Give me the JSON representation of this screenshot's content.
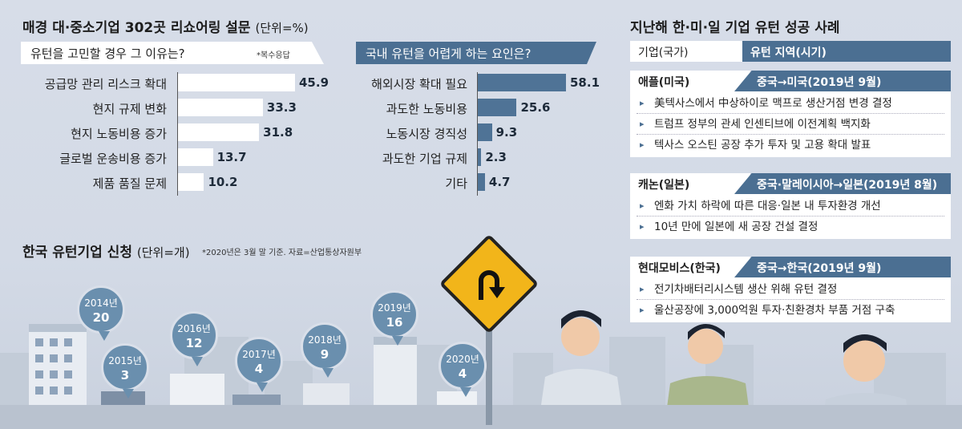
{
  "header": {
    "title": "매경 대·중소기업 302곳 리쇼어링 설문",
    "unit": "(단위=%)"
  },
  "left_chart": {
    "question": "유턴을 고민할 경우 그 이유는?",
    "note": "*복수응답"
  },
  "mid_chart": {
    "question": "국내 유턴을 어렵게 하는 요인은?"
  },
  "bottom": {
    "title": "한국 유턴기업 신청",
    "unit": "(단위=개)",
    "note": "*2020년은 3월 말 기준. 자료=산업통상자원부"
  },
  "chart_data": [
    {
      "type": "bar",
      "title": "유턴을 고민할 경우 그 이유는?",
      "orientation": "horizontal",
      "categories": [
        "공급망 관리 리스크 확대",
        "현지 규제 변화",
        "현지 노동비용 증가",
        "글로벌 운송비용 증가",
        "제품 품질 문제"
      ],
      "values": [
        45.9,
        33.3,
        31.8,
        13.7,
        10.2
      ],
      "value_labels": [
        "45.9",
        "33.3",
        "31.8",
        "13.7",
        "10.2"
      ],
      "color": "#ffffff"
    },
    {
      "type": "bar",
      "title": "국내 유턴을 어렵게 하는 요인은?",
      "orientation": "horizontal",
      "categories": [
        "해외시장 확대 필요",
        "과도한 노동비용",
        "노동시장 경직성",
        "과도한 기업 규제",
        "기타"
      ],
      "values": [
        58.1,
        25.6,
        9.3,
        2.3,
        4.7
      ],
      "value_labels": [
        "58.1",
        "25.6",
        "9.3",
        "2.3",
        "4.7"
      ],
      "color": "#4f7396"
    },
    {
      "type": "bar",
      "title": "한국 유턴기업 신청",
      "categories": [
        "2014년",
        "2015년",
        "2016년",
        "2017년",
        "2018년",
        "2019년",
        "2020년"
      ],
      "values": [
        20,
        3,
        12,
        4,
        9,
        16,
        4
      ],
      "value_labels": [
        "20",
        "3",
        "12",
        "4",
        "9",
        "16",
        "4"
      ]
    }
  ],
  "right_panel": {
    "title": "지난해 한·미·일 기업 유턴 성공 사례",
    "head_left": "기업(국가)",
    "head_right": "유턴 지역(시기)",
    "cases": [
      {
        "company": "애플(미국)",
        "route": "중국→미국(2019년 9월)",
        "items": [
          "美텍사스에서 中상하이로 맥프로 생산거점 변경 결정",
          "트럼프 정부의 관세 인센티브에 이전계획 백지화",
          "텍사스 오스틴 공장 추가 투자 및 고용 확대 발표"
        ]
      },
      {
        "company": "캐논(일본)",
        "route": "중국·말레이시아→일본(2019년 8월)",
        "items": [
          "엔화 가치 하락에 따른 대응·일본 내 투자환경 개선",
          "10년 만에 일본에 새 공장 건설 결정"
        ]
      },
      {
        "company": "현대모비스(한국)",
        "route": "중국→한국(2019년 9월)",
        "items": [
          "전기차배터리시스템 생산 위해 유턴 결정",
          "울산공장에 3,000억원 투자·친환경차 부품 거점 구축"
        ]
      }
    ]
  }
}
